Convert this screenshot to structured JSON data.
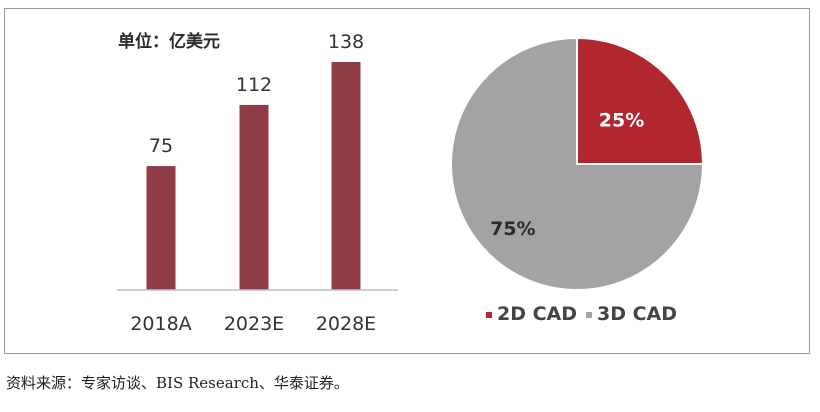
{
  "source": "资料来源：专家访谈、BIS Research、华泰证券。",
  "chart_data": [
    {
      "type": "bar",
      "unit_label": "单位：亿美元",
      "categories": [
        "2018A",
        "2023E",
        "2028E"
      ],
      "values": [
        75,
        112,
        138
      ],
      "data_labels": [
        "75",
        "112",
        "138"
      ],
      "ylim": [
        0,
        150
      ],
      "color": "#8f3c46",
      "grid": false
    },
    {
      "type": "pie",
      "slices": [
        {
          "label": "2D CAD",
          "value": 25,
          "text": "25%",
          "color": "#b1262f",
          "text_color": "#ffffff"
        },
        {
          "label": "3D CAD",
          "value": 75,
          "text": "75%",
          "color": "#a3a3a5",
          "text_color": "#2b2b2b"
        }
      ],
      "legend": [
        "2D CAD",
        "3D CAD"
      ],
      "legend_position": "bottom"
    }
  ]
}
